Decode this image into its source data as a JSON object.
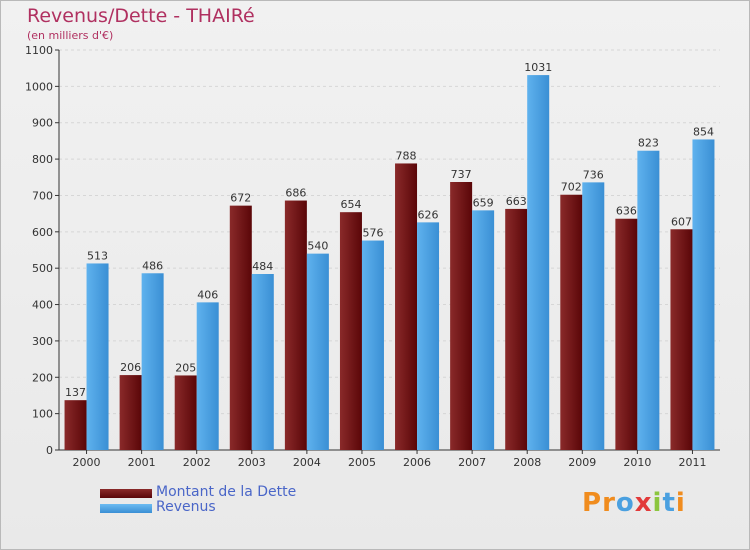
{
  "title": "Revenus/Dette - THAIRé",
  "subtitle": "(en milliers d'€)",
  "logo": "Proxiti",
  "colors": {
    "dette": "#6e0f12",
    "revenus": "#4a9fe0",
    "title": "#b03060",
    "legend_text": "#4a66c8"
  },
  "chart_data": {
    "type": "bar",
    "title": "Revenus/Dette - THAIRé",
    "subtitle": "(en milliers d'€)",
    "categories": [
      "2000",
      "2001",
      "2002",
      "2003",
      "2004",
      "2005",
      "2006",
      "2007",
      "2008",
      "2009",
      "2010",
      "2011"
    ],
    "series": [
      {
        "name": "Montant de la Dette",
        "color": "#6e0f12",
        "values": [
          137,
          206,
          205,
          672,
          686,
          654,
          788,
          737,
          663,
          702,
          636,
          607
        ]
      },
      {
        "name": "Revenus",
        "color": "#4a9fe0",
        "values": [
          513,
          486,
          406,
          484,
          540,
          576,
          626,
          659,
          1031,
          736,
          823,
          854
        ]
      }
    ],
    "ylim": [
      0,
      1100
    ],
    "yticks": [
      0,
      100,
      200,
      300,
      400,
      500,
      600,
      700,
      800,
      900,
      1000,
      1100
    ],
    "grid": true,
    "legend": "bottom-left"
  }
}
